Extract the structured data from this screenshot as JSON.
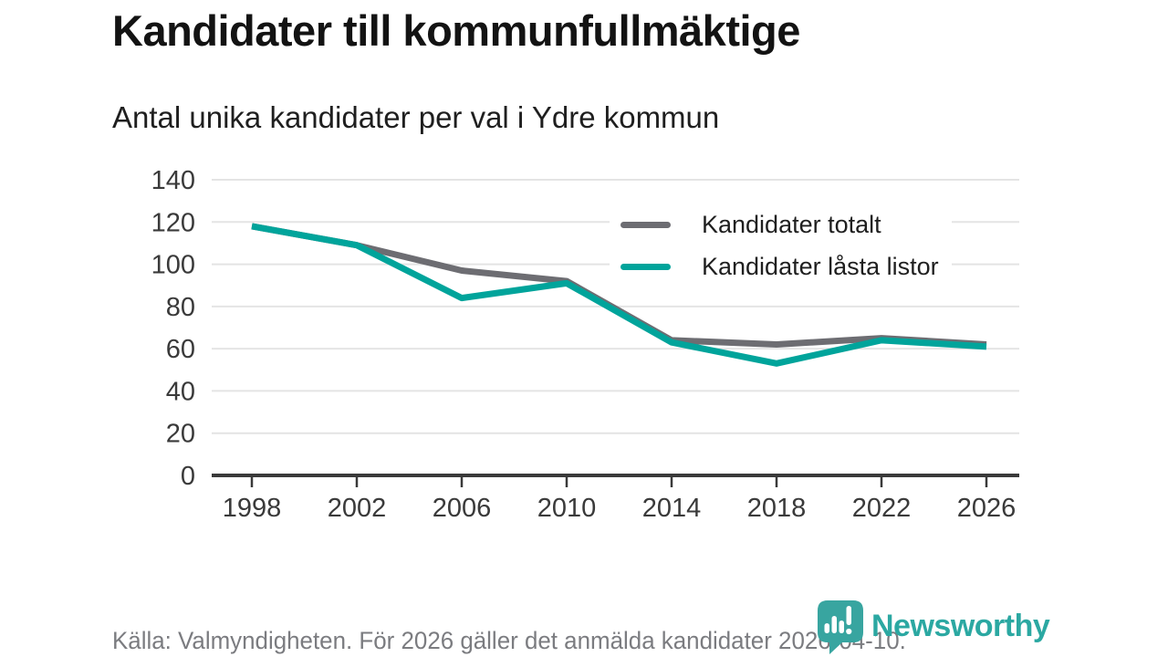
{
  "header": {
    "title": "Kandidater till kommunfullmäktige",
    "subtitle": "Antal unika kandidater per val i Ydre kommun"
  },
  "chart_data": {
    "type": "line",
    "x": [
      1998,
      2002,
      2006,
      2010,
      2014,
      2018,
      2022,
      2026
    ],
    "series": [
      {
        "name": "Kandidater totalt",
        "color": "#6d6d72",
        "values": [
          118,
          109,
          97,
          92,
          64,
          62,
          65,
          62
        ]
      },
      {
        "name": "Kandidater låsta listor",
        "color": "#00a49b",
        "values": [
          118,
          109,
          84,
          91,
          63,
          53,
          64,
          61
        ]
      }
    ],
    "ylim": [
      0,
      140
    ],
    "ytick_step": 20,
    "grid": true,
    "grid_color": "#e4e4e4",
    "axis_color": "#3a3a3a",
    "tick_label_color": "#3a3a3a",
    "line_width": 7,
    "legend_position": "top-right"
  },
  "footer": {
    "source": "Källa: Valmyndigheten. För 2026 gäller det anmälda kandidater 2026-04-10."
  },
  "logo": {
    "text": "Newsworthy",
    "icon_color": "#38a5a0",
    "text_color": "#2ba8a2"
  }
}
